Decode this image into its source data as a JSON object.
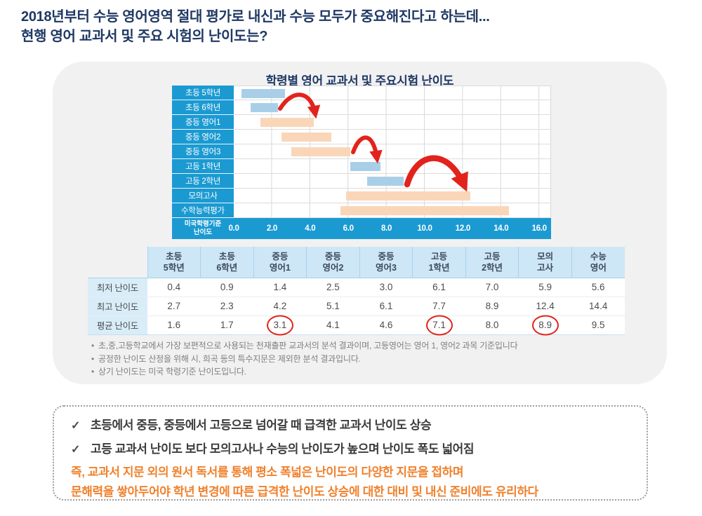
{
  "header": {
    "line1": "2018년부터 수능 영어영역 절대 평가로 내신과 수능 모두가 중요해진다고 하는데...",
    "line2": "현행 영어 교과서 및 주요 시험의 난이도는?"
  },
  "chart_data": {
    "type": "bar",
    "variant": "horizontal-range-bars",
    "title": "학령별 영어 교과서 및 주요시험 난이도",
    "axis_label_line1": "미국학령기준",
    "axis_label_line2": "난이도",
    "xlim": [
      0,
      16
    ],
    "x_ticks": [
      "0.0",
      "2.0",
      "4.0",
      "6.0",
      "8.0",
      "10.0",
      "12.0",
      "14.0",
      "16.0"
    ],
    "grid": true,
    "rows": [
      {
        "label": "초등 5학년",
        "min": 0.4,
        "max": 2.7,
        "color": "blue"
      },
      {
        "label": "초등 6학년",
        "min": 0.9,
        "max": 2.3,
        "color": "blue"
      },
      {
        "label": "중등 영어1",
        "min": 1.4,
        "max": 4.2,
        "color": "orange"
      },
      {
        "label": "중등 영어2",
        "min": 2.5,
        "max": 5.1,
        "color": "orange"
      },
      {
        "label": "중등 영어3",
        "min": 3.0,
        "max": 6.1,
        "color": "orange"
      },
      {
        "label": "고등 1학년",
        "min": 6.1,
        "max": 7.7,
        "color": "blue"
      },
      {
        "label": "고등 2학년",
        "min": 7.0,
        "max": 8.9,
        "color": "blue"
      },
      {
        "label": "모의고사",
        "min": 5.9,
        "max": 12.4,
        "color": "orange"
      },
      {
        "label": "수학능력평가",
        "min": 5.6,
        "max": 14.4,
        "color": "orange"
      }
    ]
  },
  "table": {
    "columns": [
      [
        "초등",
        "5학년"
      ],
      [
        "초등",
        "6학년"
      ],
      [
        "중등",
        "영어1"
      ],
      [
        "중등",
        "영어2"
      ],
      [
        "중등",
        "영어3"
      ],
      [
        "고등",
        "1학년"
      ],
      [
        "고등",
        "2학년"
      ],
      [
        "모의",
        "고사"
      ],
      [
        "수능",
        "영어"
      ]
    ],
    "rows": [
      {
        "label": "최저 난이도",
        "values": [
          "0.4",
          "0.9",
          "1.4",
          "2.5",
          "3.0",
          "6.1",
          "7.0",
          "5.9",
          "5.6"
        ],
        "circled": []
      },
      {
        "label": "최고 난이도",
        "values": [
          "2.7",
          "2.3",
          "4.2",
          "5.1",
          "6.1",
          "7.7",
          "8.9",
          "12.4",
          "14.4"
        ],
        "circled": []
      },
      {
        "label": "평균 난이도",
        "values": [
          "1.6",
          "1.7",
          "3.1",
          "4.1",
          "4.6",
          "7.1",
          "8.0",
          "8.9",
          "9.5"
        ],
        "circled": [
          2,
          5,
          7
        ]
      }
    ]
  },
  "footnotes": {
    "bullet": "•",
    "items": [
      "초,중,고등학교에서 가장 보편적으로 사용되는 천재출판 교과서의 분석 결과이며, 고등영어는 영어 1, 영어2 과목 기준입니다",
      "공정한 난이도 산정을 위해 시, 희곡 등의 특수지문은 제외한 분석 결과입니다.",
      "상기 난이도는 미국 학령기준 난이도입니다."
    ]
  },
  "summary": {
    "check_icon": "✓",
    "checks": [
      "초등에서 중등, 중등에서 고등으로 넘어갈 때  급격한 교과서 난이도 상승",
      "고등 교과서 난이도 보다 모의고사나 수능의 난이도가 높으며 난이도 폭도 넓어짐"
    ],
    "highlights": [
      "즉, 교과서 지문 외의 원서 독서를 통해 평소 폭넓은 난이도의 다양한 지문을 접하며",
      "문해력을 쌓아두어야 학년 변경에 따른 급격한 난이도 상승에 대한 대비 및 내신 준비에도 유리하다"
    ]
  },
  "colors": {
    "title_navy": "#1F3864",
    "chart_blue": "#1B9AD2",
    "bar_blue": "#A9CFE8",
    "bar_orange": "#FAD6B8",
    "arrow_red": "#E2231C",
    "circle_red": "#E02317",
    "card_bg": "#F1F1F2",
    "table_header_bg": "#CDE7F6",
    "table_label_bg": "#D9EDF9",
    "highlight_orange": "#F0812C"
  }
}
